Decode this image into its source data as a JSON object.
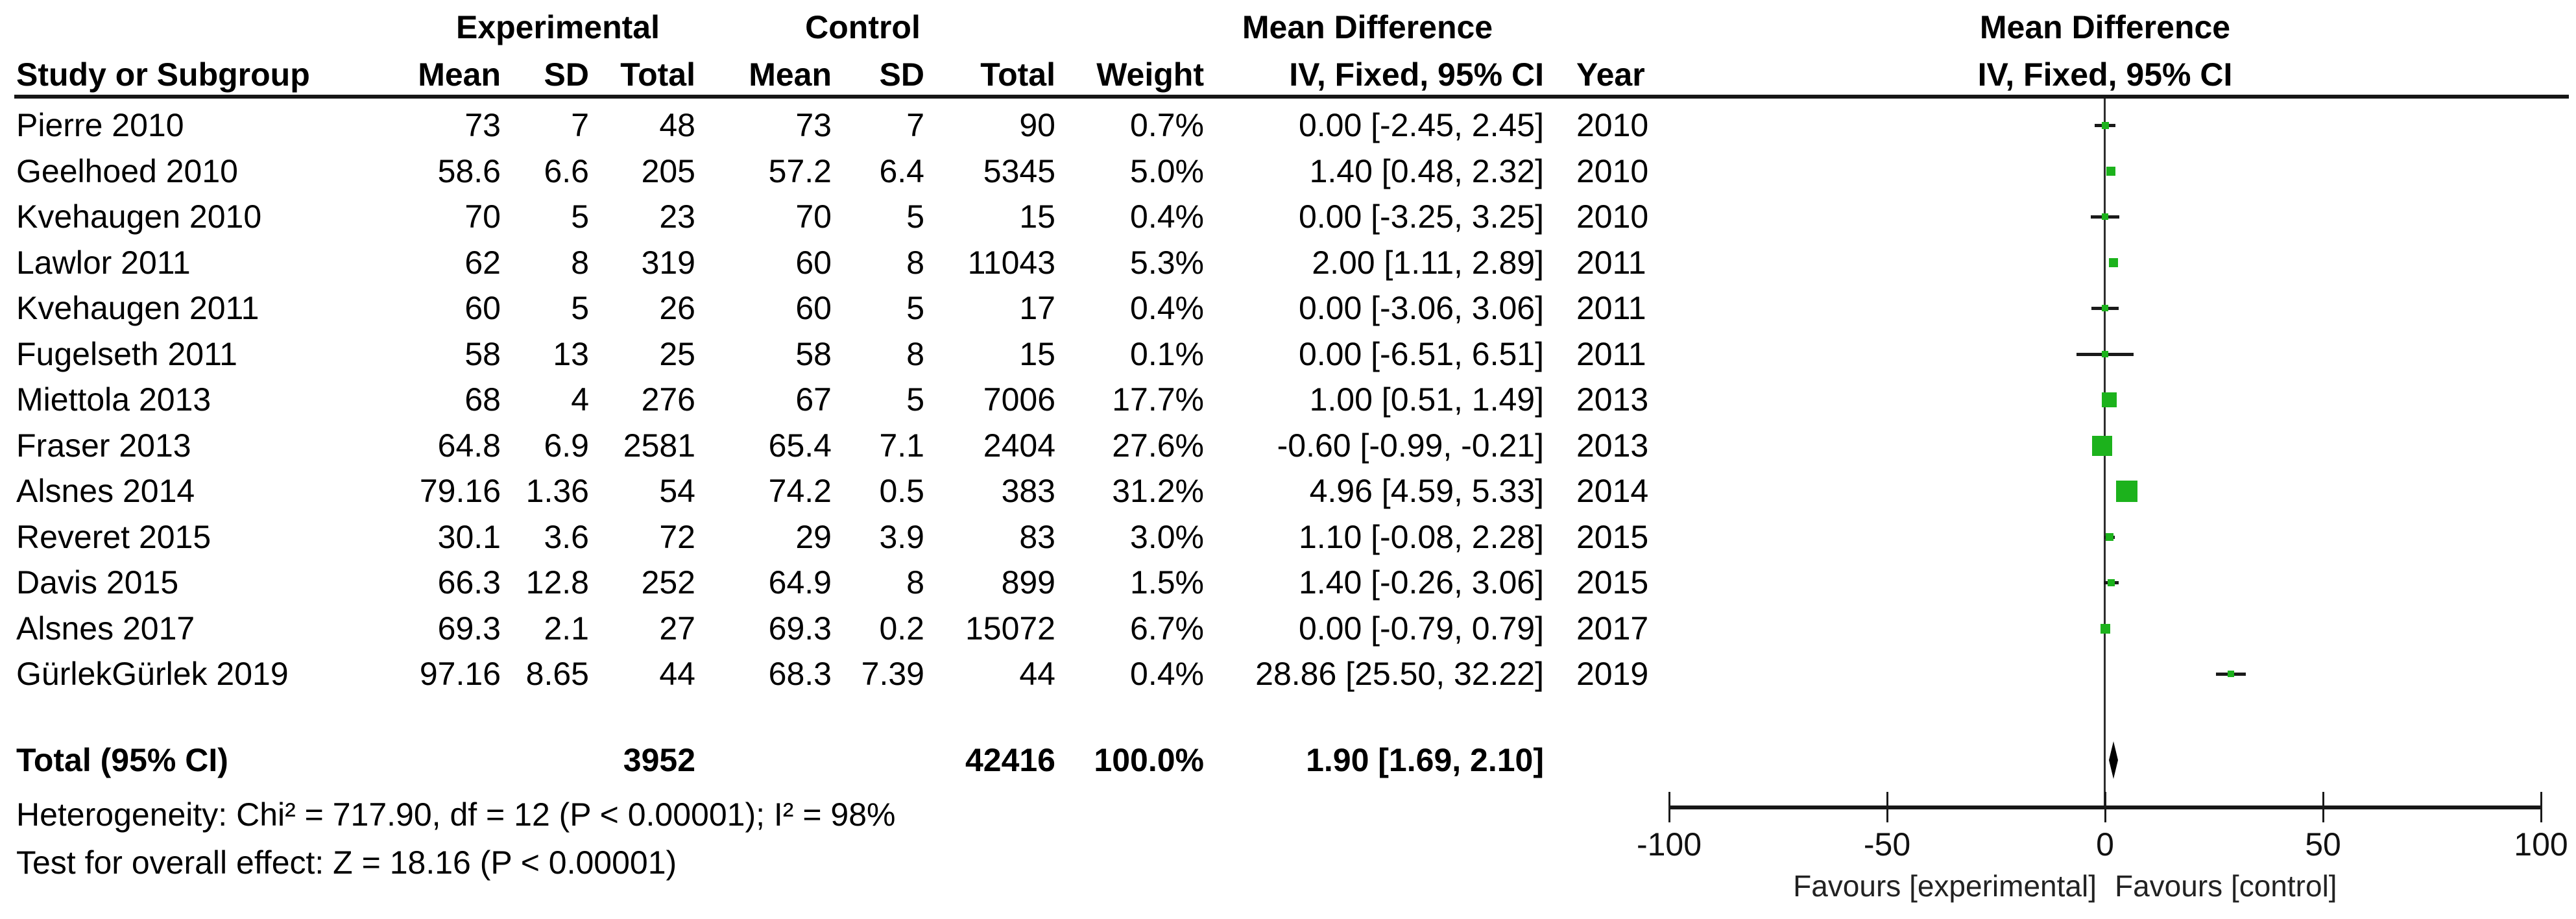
{
  "table": {
    "group_headers": {
      "experimental": "Experimental",
      "control": "Control",
      "mean_difference": "Mean Difference"
    },
    "columns": [
      "Study or Subgroup",
      "Mean",
      "SD",
      "Total",
      "Mean",
      "SD",
      "Total",
      "Weight",
      "IV, Fixed, 95% CI",
      "Year"
    ],
    "studies": [
      {
        "name": "Pierre 2010",
        "mean_e": "73",
        "sd_e": "7",
        "total_e": "48",
        "mean_c": "73",
        "sd_c": "7",
        "total_c": "90",
        "weight": "0.7%",
        "ci": "0.00 [-2.45, 2.45]",
        "year": "2010"
      },
      {
        "name": "Geelhoed 2010",
        "mean_e": "58.6",
        "sd_e": "6.6",
        "total_e": "205",
        "mean_c": "57.2",
        "sd_c": "6.4",
        "total_c": "5345",
        "weight": "5.0%",
        "ci": "1.40 [0.48, 2.32]",
        "year": "2010"
      },
      {
        "name": "Kvehaugen 2010",
        "mean_e": "70",
        "sd_e": "5",
        "total_e": "23",
        "mean_c": "70",
        "sd_c": "5",
        "total_c": "15",
        "weight": "0.4%",
        "ci": "0.00 [-3.25, 3.25]",
        "year": "2010"
      },
      {
        "name": "Lawlor 2011",
        "mean_e": "62",
        "sd_e": "8",
        "total_e": "319",
        "mean_c": "60",
        "sd_c": "8",
        "total_c": "11043",
        "weight": "5.3%",
        "ci": "2.00 [1.11, 2.89]",
        "year": "2011"
      },
      {
        "name": "Kvehaugen 2011",
        "mean_e": "60",
        "sd_e": "5",
        "total_e": "26",
        "mean_c": "60",
        "sd_c": "5",
        "total_c": "17",
        "weight": "0.4%",
        "ci": "0.00 [-3.06, 3.06]",
        "year": "2011"
      },
      {
        "name": "Fugelseth 2011",
        "mean_e": "58",
        "sd_e": "13",
        "total_e": "25",
        "mean_c": "58",
        "sd_c": "8",
        "total_c": "15",
        "weight": "0.1%",
        "ci": "0.00 [-6.51, 6.51]",
        "year": "2011"
      },
      {
        "name": "Miettola 2013",
        "mean_e": "68",
        "sd_e": "4",
        "total_e": "276",
        "mean_c": "67",
        "sd_c": "5",
        "total_c": "7006",
        "weight": "17.7%",
        "ci": "1.00 [0.51, 1.49]",
        "year": "2013"
      },
      {
        "name": "Fraser 2013",
        "mean_e": "64.8",
        "sd_e": "6.9",
        "total_e": "2581",
        "mean_c": "65.4",
        "sd_c": "7.1",
        "total_c": "2404",
        "weight": "27.6%",
        "ci": "-0.60 [-0.99, -0.21]",
        "year": "2013"
      },
      {
        "name": "Alsnes 2014",
        "mean_e": "79.16",
        "sd_e": "1.36",
        "total_e": "54",
        "mean_c": "74.2",
        "sd_c": "0.5",
        "total_c": "383",
        "weight": "31.2%",
        "ci": "4.96 [4.59, 5.33]",
        "year": "2014"
      },
      {
        "name": "Reveret 2015",
        "mean_e": "30.1",
        "sd_e": "3.6",
        "total_e": "72",
        "mean_c": "29",
        "sd_c": "3.9",
        "total_c": "83",
        "weight": "3.0%",
        "ci": "1.10 [-0.08, 2.28]",
        "year": "2015"
      },
      {
        "name": "Davis 2015",
        "mean_e": "66.3",
        "sd_e": "12.8",
        "total_e": "252",
        "mean_c": "64.9",
        "sd_c": "8",
        "total_c": "899",
        "weight": "1.5%",
        "ci": "1.40 [-0.26, 3.06]",
        "year": "2015"
      },
      {
        "name": "Alsnes 2017",
        "mean_e": "69.3",
        "sd_e": "2.1",
        "total_e": "27",
        "mean_c": "69.3",
        "sd_c": "0.2",
        "total_c": "15072",
        "weight": "6.7%",
        "ci": "0.00 [-0.79, 0.79]",
        "year": "2017"
      },
      {
        "name": "GürlekGürlek 2019",
        "mean_e": "97.16",
        "sd_e": "8.65",
        "total_e": "44",
        "mean_c": "68.3",
        "sd_c": "7.39",
        "total_c": "44",
        "weight": "0.4%",
        "ci": "28.86 [25.50, 32.22]",
        "year": "2019"
      }
    ],
    "total": {
      "label": "Total (95% CI)",
      "total_e": "3952",
      "total_c": "42416",
      "weight": "100.0%",
      "ci": "1.90 [1.69, 2.10]"
    },
    "footnotes": [
      "Heterogeneity: Chi² = 717.90, df = 12 (P < 0.00001); I² = 98%",
      "Test for overall effect: Z = 18.16 (P < 0.00001)"
    ]
  },
  "plot": {
    "header_line1": "Mean Difference",
    "header_line2": "IV, Fixed, 95% CI",
    "favours_left": "Favours [experimental]",
    "favours_right": "Favours [control]",
    "marker_color": "#1CB21C",
    "line_color": "#1a1a1a"
  },
  "chart_data": {
    "type": "scatter",
    "subtype": "forest-plot",
    "title": "Mean Difference  IV, Fixed, 95% CI",
    "effect_measure": "Mean Difference (IV, Fixed, 95% CI)",
    "xlim": [
      -100,
      100
    ],
    "x_ticks": [
      -100,
      -50,
      0,
      50,
      100
    ],
    "xlabel_left": "Favours [experimental]",
    "xlabel_right": "Favours [control]",
    "points": [
      {
        "study": "Pierre 2010",
        "md": 0.0,
        "lo": -2.45,
        "hi": 2.45,
        "weight_pct": 0.7,
        "year": 2010
      },
      {
        "study": "Geelhoed 2010",
        "md": 1.4,
        "lo": 0.48,
        "hi": 2.32,
        "weight_pct": 5.0,
        "year": 2010
      },
      {
        "study": "Kvehaugen 2010",
        "md": 0.0,
        "lo": -3.25,
        "hi": 3.25,
        "weight_pct": 0.4,
        "year": 2010
      },
      {
        "study": "Lawlor 2011",
        "md": 2.0,
        "lo": 1.11,
        "hi": 2.89,
        "weight_pct": 5.3,
        "year": 2011
      },
      {
        "study": "Kvehaugen 2011",
        "md": 0.0,
        "lo": -3.06,
        "hi": 3.06,
        "weight_pct": 0.4,
        "year": 2011
      },
      {
        "study": "Fugelseth 2011",
        "md": 0.0,
        "lo": -6.51,
        "hi": 6.51,
        "weight_pct": 0.1,
        "year": 2011
      },
      {
        "study": "Miettola 2013",
        "md": 1.0,
        "lo": 0.51,
        "hi": 1.49,
        "weight_pct": 17.7,
        "year": 2013
      },
      {
        "study": "Fraser 2013",
        "md": -0.6,
        "lo": -0.99,
        "hi": -0.21,
        "weight_pct": 27.6,
        "year": 2013
      },
      {
        "study": "Alsnes 2014",
        "md": 4.96,
        "lo": 4.59,
        "hi": 5.33,
        "weight_pct": 31.2,
        "year": 2014
      },
      {
        "study": "Reveret 2015",
        "md": 1.1,
        "lo": -0.08,
        "hi": 2.28,
        "weight_pct": 3.0,
        "year": 2015
      },
      {
        "study": "Davis 2015",
        "md": 1.4,
        "lo": -0.26,
        "hi": 3.06,
        "weight_pct": 1.5,
        "year": 2015
      },
      {
        "study": "Alsnes 2017",
        "md": 0.0,
        "lo": -0.79,
        "hi": 0.79,
        "weight_pct": 6.7,
        "year": 2017
      },
      {
        "study": "GürlekGürlek 2019",
        "md": 28.86,
        "lo": 25.5,
        "hi": 32.22,
        "weight_pct": 0.4,
        "year": 2019
      }
    ],
    "total": {
      "label": "Total (95% CI)",
      "md": 1.9,
      "lo": 1.69,
      "hi": 2.1,
      "weight_pct": 100.0
    },
    "heterogeneity": "Chi² = 717.90, df = 12 (P < 0.00001); I² = 98%",
    "overall_effect": "Z = 18.16 (P < 0.00001)"
  }
}
